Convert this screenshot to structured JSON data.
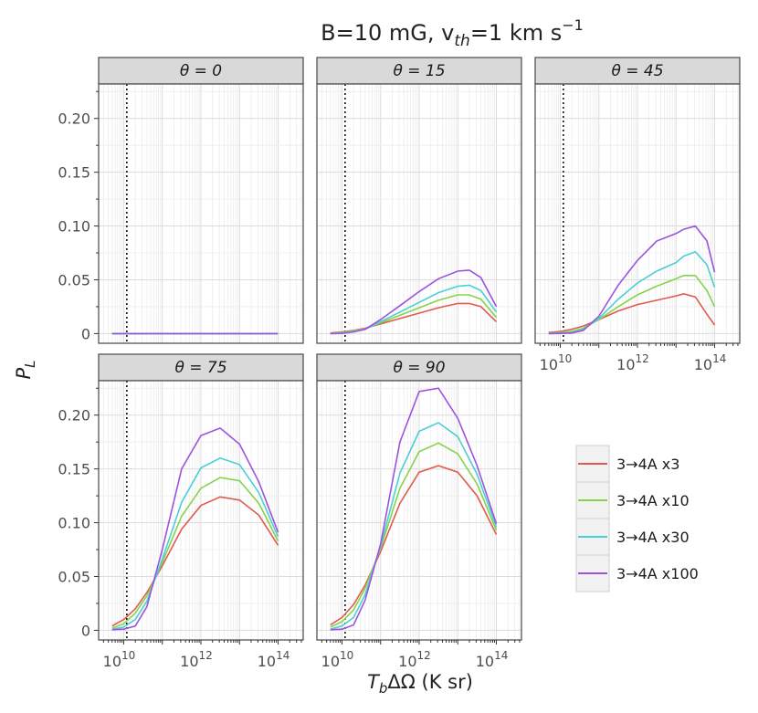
{
  "chart_data": {
    "type": "line",
    "title": "B=10 mG, v_th=1 km s^-1",
    "title_parts": {
      "a": "B=10 mG, v",
      "sub": "th",
      "b": "=1 km s",
      "sup": "−1"
    },
    "xlabel": "TbΔΩ (K sr)",
    "xlabel_parts": {
      "a": "T",
      "sub": "b",
      "b": "ΔΩ (K sr)"
    },
    "ylabel": "PL",
    "ylabel_parts": {
      "a": "P",
      "sub": "L"
    },
    "x_scale": "log10",
    "xlim_log10": [
      9.35,
      14.65
    ],
    "ylim": [
      -0.009,
      0.232
    ],
    "x_ticks": [
      {
        "log10": 10,
        "base": "10",
        "exp": "10"
      },
      {
        "log10": 12,
        "base": "10",
        "exp": "12"
      },
      {
        "log10": 14,
        "base": "10",
        "exp": "14"
      }
    ],
    "y_ticks": [
      {
        "value": 0,
        "label": "0"
      },
      {
        "value": 0.05,
        "label": "0.05"
      },
      {
        "value": 0.1,
        "label": "0.10"
      },
      {
        "value": 0.15,
        "label": "0.15"
      },
      {
        "value": 0.2,
        "label": "0.20"
      }
    ],
    "vline_log10": 10.08,
    "series_names": [
      "3→4A x3",
      "3→4A x10",
      "3→4A x30",
      "3→4A x100"
    ],
    "series_colors": [
      "#e05a4e",
      "#86d34a",
      "#49cfd6",
      "#9d52e0"
    ],
    "legend_position": "right",
    "panels": [
      {
        "label": "θ = 0",
        "x_log10": [
          9.7,
          10.0,
          10.3,
          10.6,
          11.0,
          11.5,
          12.0,
          12.5,
          13.0,
          13.5,
          14.0
        ],
        "series": [
          {
            "name": "3→4A x3",
            "values": [
              0,
              0,
              0,
              0,
              0,
              0,
              0,
              0,
              0,
              0,
              0
            ]
          },
          {
            "name": "3→4A x10",
            "values": [
              0,
              0,
              0,
              0,
              0,
              0,
              0,
              0,
              0,
              0,
              0
            ]
          },
          {
            "name": "3→4A x30",
            "values": [
              0,
              0,
              0,
              0,
              0,
              0,
              0,
              0,
              0,
              0,
              0
            ]
          },
          {
            "name": "3→4A x100",
            "values": [
              0,
              0,
              0,
              0,
              0,
              0,
              0,
              0,
              0,
              0,
              0
            ]
          }
        ]
      },
      {
        "label": "θ = 15",
        "x_log10": [
          9.7,
          10.0,
          10.3,
          10.6,
          11.0,
          11.5,
          12.0,
          12.5,
          13.0,
          13.3,
          13.6,
          14.0
        ],
        "series": [
          {
            "name": "3→4A x3",
            "values": [
              0.0005,
              0.0015,
              0.003,
              0.005,
              0.009,
              0.014,
              0.019,
              0.024,
              0.028,
              0.028,
              0.025,
              0.011
            ]
          },
          {
            "name": "3→4A x10",
            "values": [
              0.0002,
              0.001,
              0.0025,
              0.0045,
              0.01,
              0.017,
              0.024,
              0.031,
              0.036,
              0.036,
              0.032,
              0.015
            ]
          },
          {
            "name": "3→4A x30",
            "values": [
              0,
              0.0005,
              0.002,
              0.004,
              0.011,
              0.02,
              0.029,
              0.038,
              0.044,
              0.045,
              0.04,
              0.02
            ]
          },
          {
            "name": "3→4A x100",
            "values": [
              0,
              0.0002,
              0.0015,
              0.004,
              0.013,
              0.026,
              0.039,
              0.051,
              0.058,
              0.059,
              0.052,
              0.025
            ]
          }
        ]
      },
      {
        "label": "θ = 45",
        "x_log10": [
          9.7,
          10.0,
          10.3,
          10.6,
          11.0,
          11.5,
          12.0,
          12.5,
          13.0,
          13.2,
          13.5,
          13.8,
          14.0
        ],
        "series": [
          {
            "name": "3→4A x3",
            "values": [
              0.001,
              0.002,
              0.004,
              0.007,
              0.013,
              0.021,
              0.027,
              0.031,
              0.035,
              0.037,
              0.034,
              0.018,
              0.008
            ]
          },
          {
            "name": "3→4A x10",
            "values": [
              0.0005,
              0.001,
              0.002,
              0.005,
              0.013,
              0.025,
              0.036,
              0.044,
              0.051,
              0.054,
              0.054,
              0.04,
              0.025
            ]
          },
          {
            "name": "3→4A x30",
            "values": [
              0,
              0.0005,
              0.001,
              0.004,
              0.014,
              0.032,
              0.047,
              0.058,
              0.066,
              0.072,
              0.076,
              0.064,
              0.043
            ]
          },
          {
            "name": "3→4A x100",
            "values": [
              0,
              0.0002,
              0.0005,
              0.003,
              0.016,
              0.045,
              0.068,
              0.086,
              0.093,
              0.097,
              0.1,
              0.086,
              0.057
            ]
          }
        ]
      },
      {
        "label": "θ = 75",
        "x_log10": [
          9.7,
          10.0,
          10.3,
          10.6,
          11.0,
          11.5,
          12.0,
          12.5,
          13.0,
          13.5,
          14.0
        ],
        "series": [
          {
            "name": "3→4A x3",
            "values": [
              0.004,
              0.01,
              0.02,
              0.035,
              0.06,
              0.094,
              0.116,
              0.124,
              0.121,
              0.107,
              0.079
            ]
          },
          {
            "name": "3→4A x10",
            "values": [
              0.002,
              0.006,
              0.016,
              0.032,
              0.063,
              0.106,
              0.132,
              0.142,
              0.139,
              0.118,
              0.083
            ]
          },
          {
            "name": "3→4A x30",
            "values": [
              0.001,
              0.003,
              0.01,
              0.027,
              0.066,
              0.119,
              0.151,
              0.16,
              0.154,
              0.128,
              0.087
            ]
          },
          {
            "name": "3→4A x100",
            "values": [
              0.0005,
              0.001,
              0.004,
              0.022,
              0.075,
              0.15,
              0.181,
              0.188,
              0.173,
              0.138,
              0.091
            ]
          }
        ]
      },
      {
        "label": "θ = 90",
        "x_log10": [
          9.7,
          10.0,
          10.3,
          10.6,
          11.0,
          11.5,
          12.0,
          12.5,
          13.0,
          13.5,
          14.0
        ],
        "series": [
          {
            "name": "3→4A x3",
            "values": [
              0.005,
              0.012,
              0.024,
              0.042,
              0.073,
              0.118,
              0.147,
              0.153,
              0.147,
              0.125,
              0.089
            ]
          },
          {
            "name": "3→4A x10",
            "values": [
              0.003,
              0.008,
              0.019,
              0.039,
              0.076,
              0.132,
              0.166,
              0.174,
              0.164,
              0.136,
              0.093
            ]
          },
          {
            "name": "3→4A x30",
            "values": [
              0.001,
              0.004,
              0.012,
              0.033,
              0.078,
              0.146,
              0.185,
              0.193,
              0.18,
              0.145,
              0.096
            ]
          },
          {
            "name": "3→4A x100",
            "values": [
              0.0005,
              0.001,
              0.005,
              0.028,
              0.08,
              0.175,
              0.222,
              0.225,
              0.197,
              0.153,
              0.099
            ]
          }
        ]
      }
    ]
  }
}
